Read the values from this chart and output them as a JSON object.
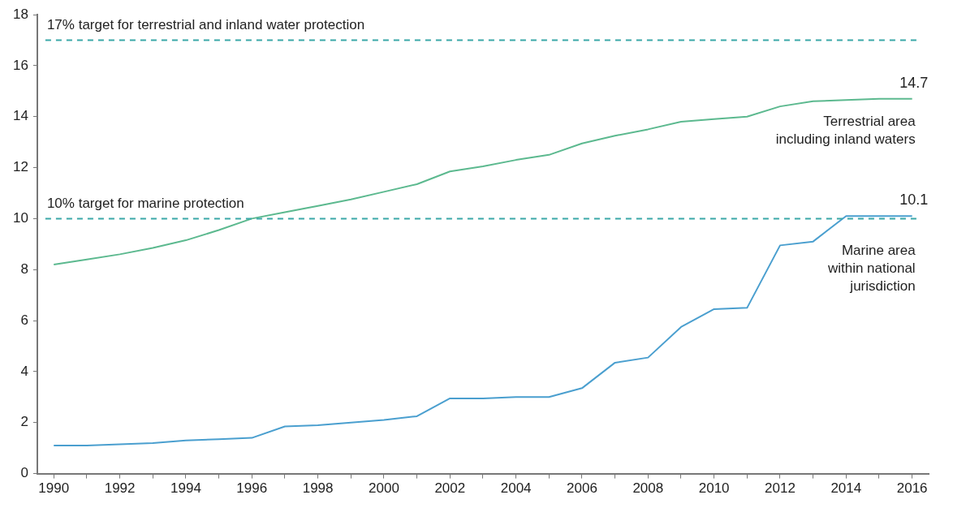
{
  "chart_data": {
    "type": "line",
    "x": [
      1990,
      1991,
      1992,
      1993,
      1994,
      1995,
      1996,
      1997,
      1998,
      1999,
      2000,
      2001,
      2002,
      2003,
      2004,
      2005,
      2006,
      2007,
      2008,
      2009,
      2010,
      2011,
      2012,
      2013,
      2014,
      2015,
      2016
    ],
    "series": [
      {
        "name": "Terrestrial area\nincluding inland waters",
        "color": "#5cb98f",
        "values": [
          8.2,
          8.4,
          8.6,
          8.85,
          9.15,
          9.55,
          10.0,
          10.25,
          10.5,
          10.75,
          11.05,
          11.35,
          11.85,
          12.05,
          12.3,
          12.5,
          12.95,
          13.25,
          13.5,
          13.8,
          13.9,
          14.0,
          14.4,
          14.6,
          14.65,
          14.7,
          14.7
        ],
        "value_labels": [
          null,
          null,
          null,
          null,
          null,
          null,
          null,
          null,
          null,
          null,
          null,
          null,
          null,
          null,
          null,
          null,
          null,
          null,
          null,
          null,
          null,
          null,
          null,
          null,
          null,
          null,
          "14.7"
        ]
      },
      {
        "name": "Marine area\nwithin national\njurisdiction",
        "color": "#4a9fcf",
        "values": [
          1.1,
          1.1,
          1.15,
          1.2,
          1.3,
          1.35,
          1.4,
          1.85,
          1.9,
          2.0,
          2.1,
          2.25,
          2.95,
          2.95,
          3.0,
          3.0,
          3.35,
          4.35,
          4.55,
          5.75,
          6.45,
          6.5,
          8.95,
          9.1,
          10.1,
          10.1,
          10.1
        ],
        "value_labels": [
          null,
          null,
          null,
          null,
          null,
          null,
          null,
          null,
          null,
          null,
          null,
          null,
          null,
          null,
          null,
          null,
          null,
          null,
          null,
          null,
          null,
          null,
          null,
          null,
          null,
          null,
          "10.1"
        ]
      }
    ],
    "xlim": [
      1989.5,
      2016.5
    ],
    "xticks": [
      1990,
      {
        "value": 1991,
        "label": null
      },
      1992,
      {
        "value": 1993,
        "label": null
      },
      1994,
      {
        "value": 1995,
        "label": null
      },
      1996,
      {
        "value": 1997,
        "label": null
      },
      1998,
      {
        "value": 1999,
        "label": null
      },
      2000,
      {
        "value": 2001,
        "label": null
      },
      2002,
      {
        "value": 2003,
        "label": null
      },
      2004,
      {
        "value": 2005,
        "label": null
      },
      2006,
      {
        "value": 2007,
        "label": null
      },
      2008,
      {
        "value": 2009,
        "label": null
      },
      2010,
      {
        "value": 2011,
        "label": null
      },
      2012,
      {
        "value": 2013,
        "label": null
      },
      2014,
      {
        "value": 2015,
        "label": null
      },
      2016
    ],
    "ylim": [
      0,
      18
    ],
    "yticks": [
      0,
      2,
      4,
      6,
      8,
      10,
      12,
      14,
      16,
      18
    ],
    "ref_lines": [
      {
        "axis": "y",
        "value": 17,
        "label": "17% target for terrestrial and inland water protection",
        "color": "#3aa8a8",
        "line_style": "dashed"
      },
      {
        "axis": "y",
        "value": 10,
        "label": "10% target for marine protection",
        "color": "#3aa8a8",
        "line_style": "dashed"
      }
    ],
    "grid": false,
    "legend": false,
    "marker": "none",
    "line_style": "solid"
  }
}
